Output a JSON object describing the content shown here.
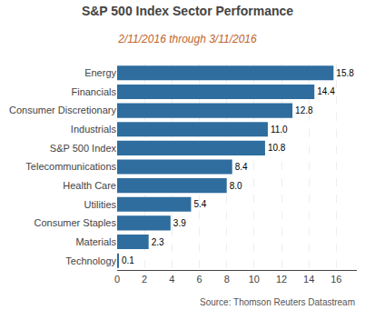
{
  "chart_data": {
    "type": "bar",
    "orientation": "horizontal",
    "title": "S&P 500 Index Sector Performance",
    "subtitle": "2/11/2016 through 3/11/2016",
    "annotations": [
      "Source: Thomson Reuters Datastream"
    ],
    "categories": [
      "Technology",
      "Materials",
      "Consumer Staples",
      "Utilities",
      "Health Care",
      "Telecommunications",
      "S&P 500 Index",
      "Industrials",
      "Consumer Discretionary",
      "Financials",
      "Energy"
    ],
    "values": [
      0.1,
      2.3,
      3.9,
      5.4,
      8.0,
      8.4,
      10.8,
      11.0,
      12.8,
      14.4,
      15.8
    ],
    "value_labels": [
      "0.1",
      "2.3",
      "3.9",
      "5.4",
      "8.0",
      "8.4",
      "10.8",
      "11.0",
      "12.8",
      "14.4",
      "15.8"
    ],
    "color": "#2e6d9e",
    "xlim": [
      0,
      17.5
    ],
    "xticks": [
      0,
      2,
      4,
      6,
      8,
      10,
      12,
      14,
      16
    ],
    "grid": true,
    "data_labels": true
  }
}
